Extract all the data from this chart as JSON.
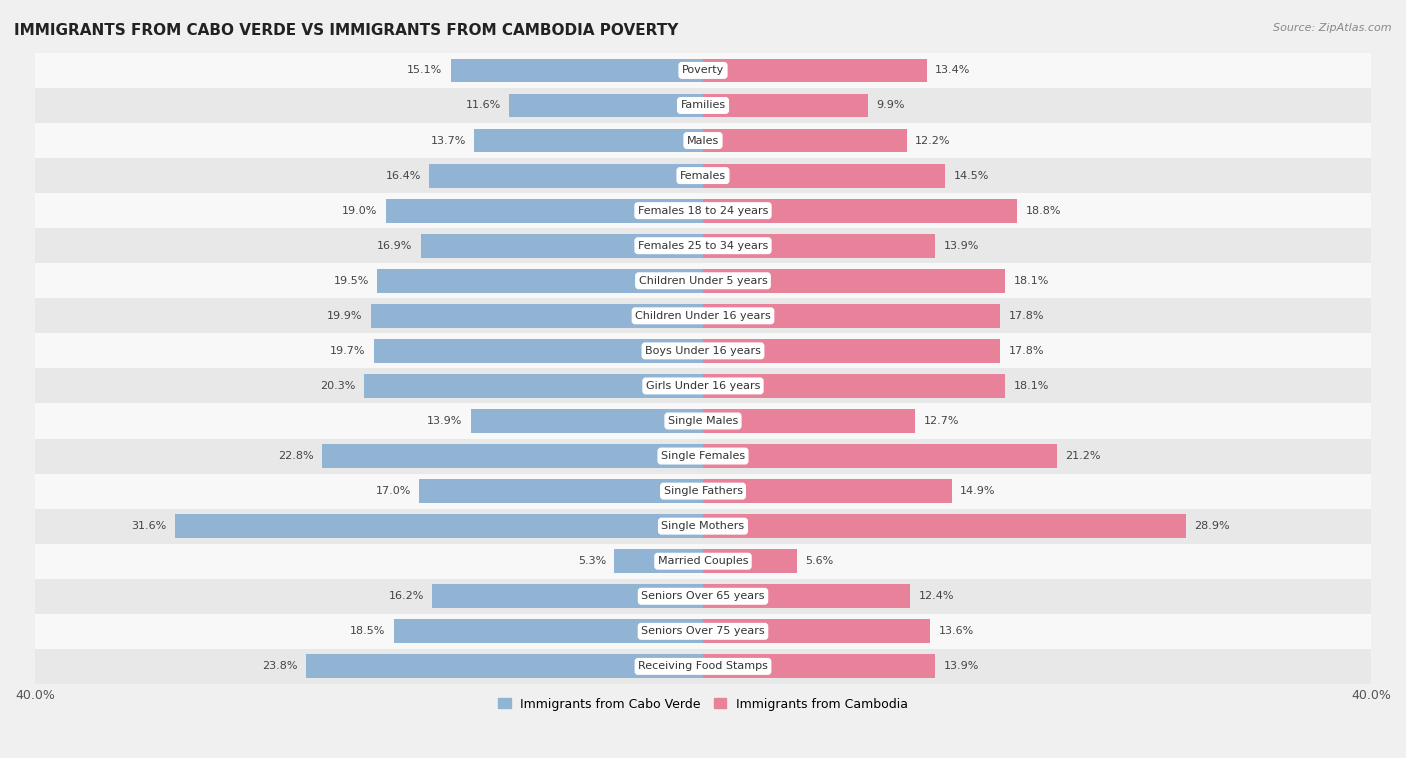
{
  "title": "IMMIGRANTS FROM CABO VERDE VS IMMIGRANTS FROM CAMBODIA POVERTY",
  "source": "Source: ZipAtlas.com",
  "categories": [
    "Poverty",
    "Families",
    "Males",
    "Females",
    "Females 18 to 24 years",
    "Females 25 to 34 years",
    "Children Under 5 years",
    "Children Under 16 years",
    "Boys Under 16 years",
    "Girls Under 16 years",
    "Single Males",
    "Single Females",
    "Single Fathers",
    "Single Mothers",
    "Married Couples",
    "Seniors Over 65 years",
    "Seniors Over 75 years",
    "Receiving Food Stamps"
  ],
  "cabo_verde": [
    15.1,
    11.6,
    13.7,
    16.4,
    19.0,
    16.9,
    19.5,
    19.9,
    19.7,
    20.3,
    13.9,
    22.8,
    17.0,
    31.6,
    5.3,
    16.2,
    18.5,
    23.8
  ],
  "cambodia": [
    13.4,
    9.9,
    12.2,
    14.5,
    18.8,
    13.9,
    18.1,
    17.8,
    17.8,
    18.1,
    12.7,
    21.2,
    14.9,
    28.9,
    5.6,
    12.4,
    13.6,
    13.9
  ],
  "cabo_verde_color": "#92b4d4",
  "cambodia_color": "#e8819a",
  "cabo_verde_label": "Immigrants from Cabo Verde",
  "cambodia_label": "Immigrants from Cambodia",
  "xlim": 40.0,
  "bar_height": 0.68,
  "bg_color": "#f0f0f0",
  "row_alt_color": "#e8e8e8",
  "row_base_color": "#f8f8f8",
  "label_fontsize": 8.0,
  "value_fontsize": 8.0,
  "title_fontsize": 11,
  "source_fontsize": 8
}
